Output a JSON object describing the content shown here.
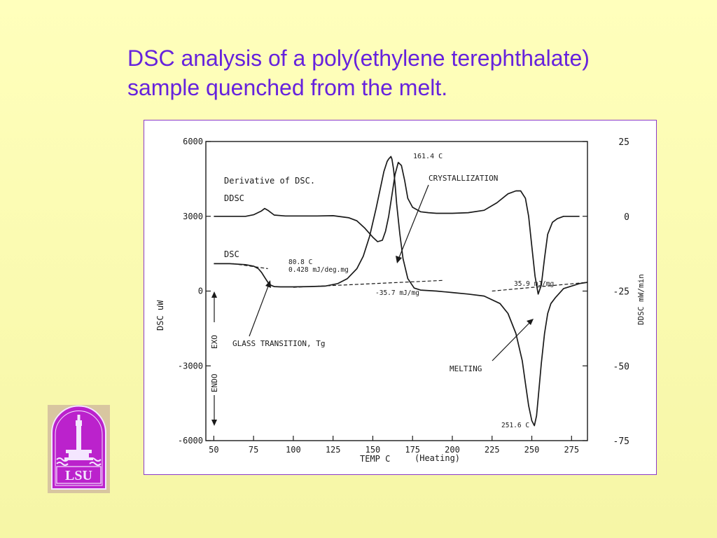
{
  "slide": {
    "title_line1": "DSC analysis of a poly(ethylene terephthalate)",
    "title_line2": "sample quenched from the melt."
  },
  "colors": {
    "background": "#ffffbc",
    "title": "#6622dd",
    "frame_border": "#8a3ac9",
    "curve": "#1a1a1a",
    "logo_purple": "#bb22cc"
  },
  "logo": {
    "text": "LSU"
  },
  "chart_data": {
    "type": "line",
    "xlabel": "TEMP C",
    "xlabel_suffix": "(Heating)",
    "ylabel_left": "DSC uW",
    "ylabel_right": "DDSC mW/min",
    "xlim": [
      45,
      285
    ],
    "ylim_left": [
      -6000,
      6000
    ],
    "ylim_right": [
      -75,
      25
    ],
    "x_ticks": [
      50,
      75,
      100,
      125,
      150,
      175,
      200,
      225,
      250,
      275
    ],
    "y_left_ticks": [
      6000,
      3000,
      0,
      -3000,
      -6000
    ],
    "y_right_ticks": [
      25,
      0,
      -25,
      -50,
      -75
    ],
    "exo_label": "EXO",
    "endo_label": "ENDO",
    "series": [
      {
        "name": "DDSC",
        "axis": "right",
        "x": [
          50,
          60,
          70,
          75,
          80,
          82,
          84,
          88,
          95,
          105,
          115,
          125,
          135,
          140,
          145,
          150,
          153,
          156,
          158,
          160,
          162,
          164,
          166,
          168,
          170,
          172,
          175,
          180,
          185,
          190,
          200,
          210,
          220,
          228,
          235,
          240,
          243,
          246,
          248,
          250,
          252,
          254,
          256,
          258,
          260,
          263,
          266,
          270,
          275,
          280
        ],
        "values": [
          0,
          0,
          0,
          0.5,
          1.8,
          2.6,
          2.0,
          0.4,
          0.1,
          0.1,
          0.1,
          0.2,
          -0.5,
          -1.5,
          -4,
          -7,
          -8.5,
          -8,
          -5,
          0,
          7,
          14,
          18,
          17,
          12,
          6,
          3,
          1.5,
          1.2,
          1,
          1,
          1.2,
          2,
          4.5,
          7.5,
          8.5,
          8.5,
          6,
          0,
          -10,
          -20,
          -26,
          -23,
          -14,
          -6,
          -2,
          -0.8,
          0,
          0,
          0
        ]
      },
      {
        "name": "DSC",
        "axis": "left",
        "x": [
          50,
          60,
          70,
          75,
          78,
          80,
          82,
          84,
          86,
          88,
          92,
          100,
          110,
          120,
          128,
          134,
          140,
          144,
          148,
          152,
          155,
          157,
          159,
          160,
          161.4,
          162,
          163,
          164,
          165,
          167,
          169,
          172,
          176,
          180,
          190,
          200,
          210,
          220,
          230,
          235,
          240,
          244,
          246,
          248,
          250,
          251.6,
          253,
          254,
          256,
          258,
          260,
          262,
          265,
          270,
          280,
          285
        ],
        "values": [
          1100,
          1100,
          1060,
          1000,
          900,
          750,
          550,
          350,
          230,
          180,
          170,
          170,
          180,
          200,
          300,
          500,
          900,
          1400,
          2200,
          3300,
          4200,
          4800,
          5200,
          5300,
          5400,
          5300,
          4900,
          4300,
          3500,
          2300,
          1300,
          500,
          120,
          40,
          0,
          -60,
          -120,
          -200,
          -500,
          -900,
          -1700,
          -2800,
          -3700,
          -4600,
          -5200,
          -5400,
          -5000,
          -4300,
          -2900,
          -1700,
          -900,
          -500,
          -250,
          100,
          300,
          350
        ]
      }
    ],
    "baselines": [
      {
        "x": [
          62,
          84
        ],
        "values": [
          1100,
          900
        ]
      },
      {
        "x": [
          100,
          195
        ],
        "values": [
          150,
          430
        ]
      },
      {
        "x": [
          225,
          285
        ],
        "values": [
          0,
          350
        ]
      }
    ],
    "annotations": {
      "derivative_title": "Derivative of DSC.",
      "ddsc_label": "DDSC",
      "dsc_label": "DSC",
      "peak_label": "161.4 C",
      "crystallization_label": "CRYSTALLIZATION",
      "tg_temp": "80.8 C",
      "tg_value": "0.428 mJ/deg.mg",
      "cryst_enthalpy": "-35.7 mJ/mg",
      "melt_enthalpy": "35.9 mJ/mg",
      "glass_transition_label": "GLASS TRANSITION, Tg",
      "melting_label": "MELTING",
      "melt_peak_label": "251.6 C"
    }
  }
}
